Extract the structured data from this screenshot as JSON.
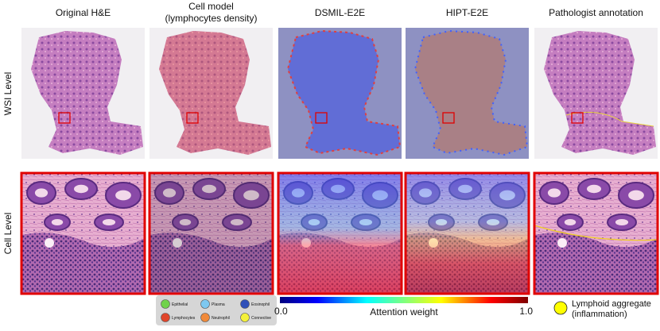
{
  "figure": {
    "columns": [
      {
        "title": "Original H&E"
      },
      {
        "title": "Cell model",
        "subtitle": "(lymphocytes density)"
      },
      {
        "title": "DSMIL-E2E"
      },
      {
        "title": "HIPT-E2E"
      },
      {
        "title": "Pathologist annotation"
      }
    ],
    "rows": [
      "WSI Level",
      "Cell Level"
    ],
    "cell_legend": [
      {
        "label": "Epithelial",
        "color": "#6fd24a"
      },
      {
        "label": "Plasma",
        "color": "#7ec8f0"
      },
      {
        "label": "Eosinophil",
        "color": "#2f4fb8"
      },
      {
        "label": "Lymphocytes",
        "color": "#e0452a"
      },
      {
        "label": "Neutrophil",
        "color": "#f08a3a"
      },
      {
        "label": "Connective",
        "color": "#f4f03a"
      }
    ],
    "colorbar": {
      "min_label": "0.0",
      "title": "Attention weight",
      "max_label": "1.0"
    },
    "annotation_legend": {
      "label": "Lymphoid aggregate",
      "sublabel": "(inflammation)",
      "color": "#ffff00"
    }
  }
}
